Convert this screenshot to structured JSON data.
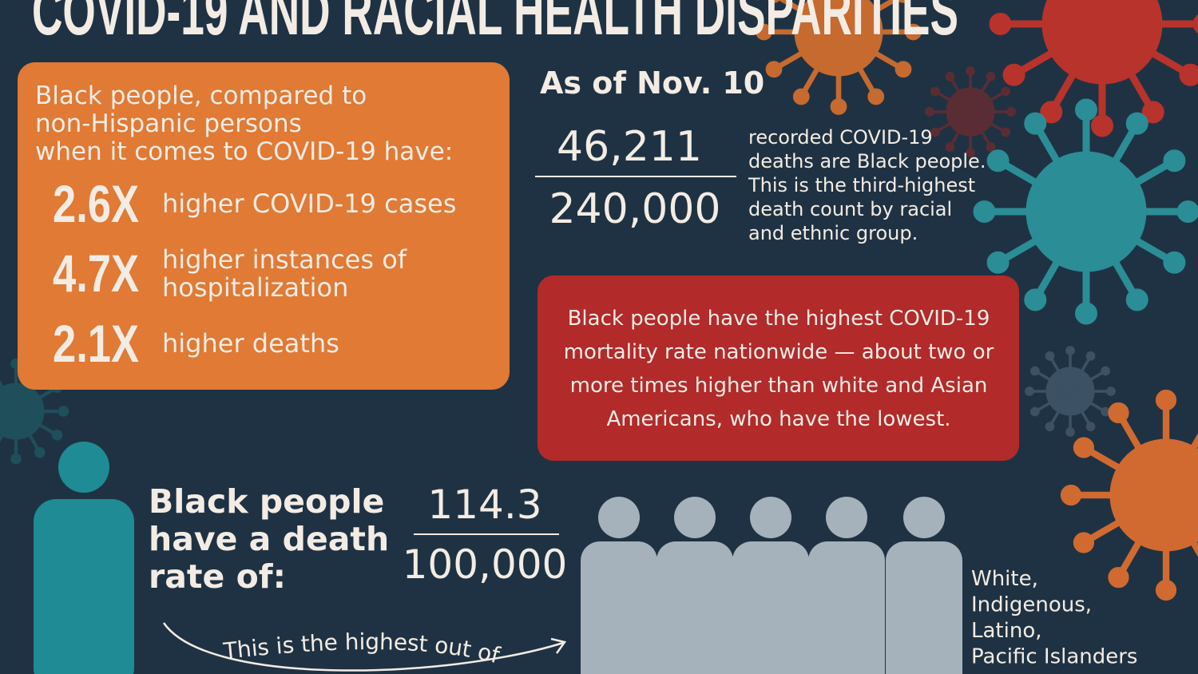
{
  "title": "COVID-19 AND RACIAL HEALTH DISPARITIES",
  "intro": {
    "lines": [
      "Black people, compared to",
      "non-Hispanic persons",
      "when it comes to COVID-19 have:"
    ]
  },
  "stats": [
    {
      "figure": "2.6X",
      "lines": [
        "higher COVID-19 cases"
      ]
    },
    {
      "figure": "4.7X",
      "lines": [
        "higher instances of",
        "hospitalization"
      ]
    },
    {
      "figure": "2.1X",
      "lines": [
        "higher deaths"
      ]
    }
  ],
  "deaths": {
    "heading": "As of Nov. 10",
    "numerator": "46,211",
    "denominator": "240,000",
    "lines": [
      "recorded COVID-19",
      "deaths are Black people.",
      "This is the third-highest",
      "death count by racial",
      "and ethnic group."
    ]
  },
  "mortality": {
    "lines": [
      "Black people have the highest COVID-19",
      "mortality rate nationwide — about two or",
      "more times higher than white and Asian",
      "Americans, who have the lowest."
    ]
  },
  "death_rate": {
    "lines": [
      "Black people",
      "have a death",
      "rate of:"
    ],
    "numerator": "114.3",
    "denominator": "100,000",
    "note": "This is the highest out of"
  },
  "groups": {
    "lines": [
      "White,",
      "Indigenous,",
      "Latino,",
      "Pacific Islanders"
    ]
  }
}
